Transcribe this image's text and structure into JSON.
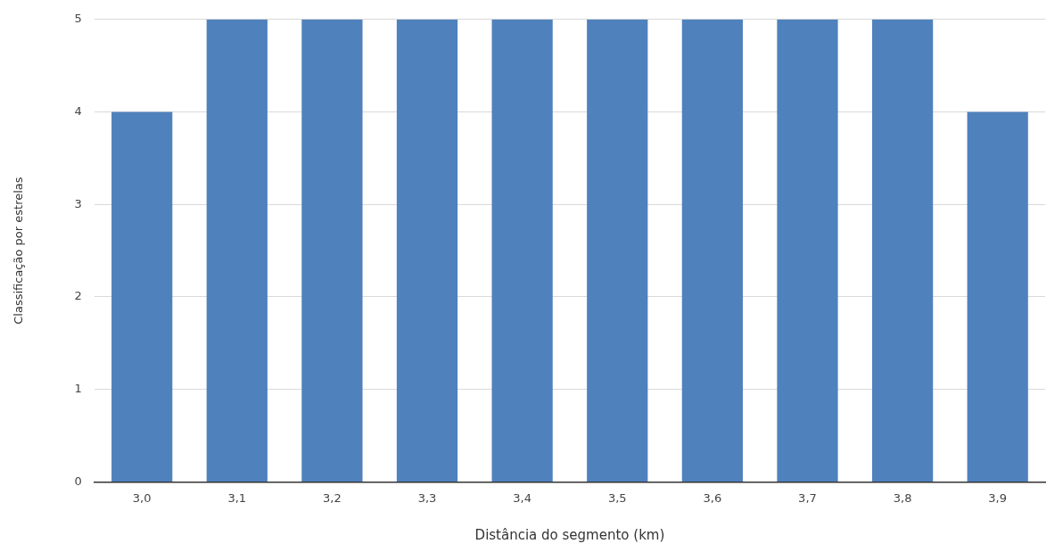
{
  "chart_data": {
    "type": "bar",
    "categories": [
      "3,0",
      "3,1",
      "3,2",
      "3,3",
      "3,4",
      "3,5",
      "3,6",
      "3,7",
      "3,8",
      "3,9"
    ],
    "values": [
      4,
      5,
      5,
      5,
      5,
      5,
      5,
      5,
      5,
      4
    ],
    "color": "#4f81bd",
    "xlabel": "Distância do segmento (km)",
    "ylabel": "Classificação por estrelas",
    "ylim": [
      0,
      5
    ],
    "yticks": [
      0,
      1,
      2,
      3,
      4,
      5
    ],
    "grid": "y",
    "legend": false
  }
}
